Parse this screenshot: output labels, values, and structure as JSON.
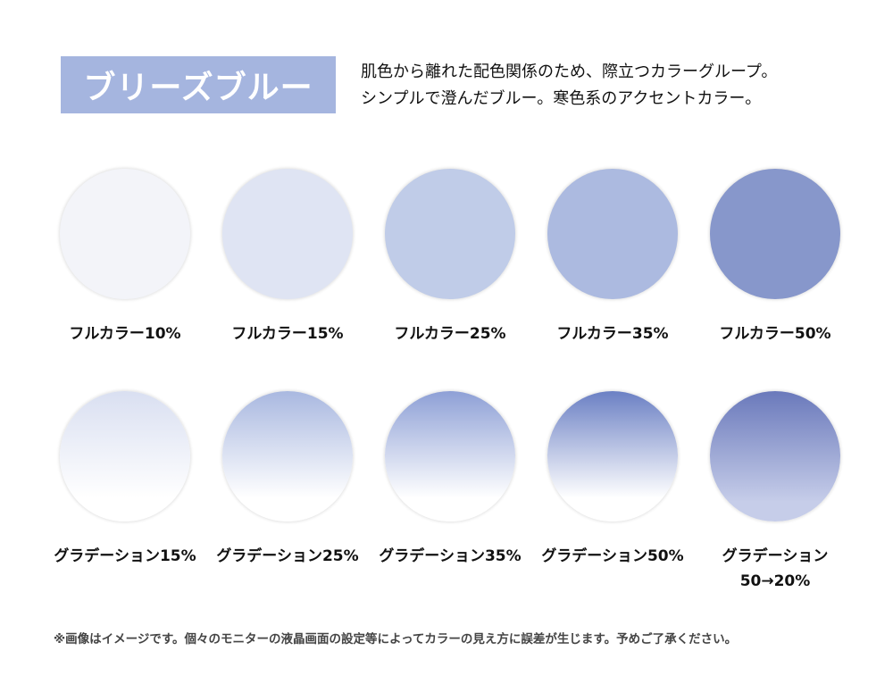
{
  "header": {
    "title": "ブリーズブルー",
    "title_bg": "#a5b5df",
    "description": [
      "肌色から離れた配色関係のため、際立つカラーグループ。",
      "シンプルで澄んだブルー。寒色系のアクセントカラー。"
    ]
  },
  "full_colors": [
    {
      "label": "フルカラー10%",
      "color": "#f3f4f9"
    },
    {
      "label": "フルカラー15%",
      "color": "#dfe4f3"
    },
    {
      "label": "フルカラー25%",
      "color": "#c0cce8"
    },
    {
      "label": "フルカラー35%",
      "color": "#acbae0"
    },
    {
      "label": "フルカラー50%",
      "color": "#8797cb"
    }
  ],
  "gradients": [
    {
      "label": "グラデーション15%",
      "top": "#d9dff1",
      "bottom": "#ffffff"
    },
    {
      "label": "グラデーション25%",
      "top": "#a9b8e0",
      "bottom": "#ffffff"
    },
    {
      "label": "グラデーション35%",
      "top": "#8ea0d6",
      "bottom": "#ffffff"
    },
    {
      "label": "グラデーション50%",
      "top": "#6b80c4",
      "bottom": "#ffffff"
    },
    {
      "label": "グラデーション",
      "label2": "50→20%",
      "top": "#6a79bb",
      "bottom": "#c6cde9"
    }
  ],
  "footnote": "※画像はイメージです。個々のモニターの液晶画面の設定等によってカラーの見え方に誤差が生じます。予めご了承ください。"
}
